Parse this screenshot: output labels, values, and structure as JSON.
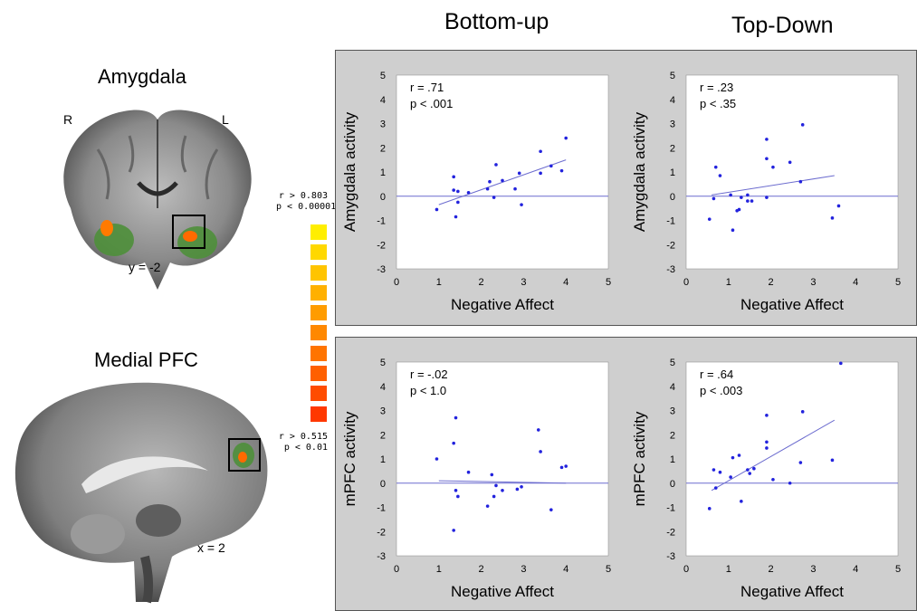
{
  "columns": {
    "left": "Bottom-up",
    "right": "Top-Down"
  },
  "amygdala": {
    "title": "Amygdala",
    "left_label": "R",
    "right_label": "L",
    "coord": "y = -2"
  },
  "mpfc": {
    "title": "Medial PFC",
    "coord": "x = 2"
  },
  "colorbar": {
    "top_r": "r > 0.803",
    "top_p": "p < 0.00001",
    "bottom_r": "r > 0.515",
    "bottom_p": "p < 0.01",
    "colors": [
      "#ffee00",
      "#ffd800",
      "#ffc400",
      "#ffb000",
      "#ff9c00",
      "#ff8800",
      "#ff7400",
      "#ff6000",
      "#ff4c00",
      "#ff3800"
    ]
  },
  "chart_data": [
    {
      "type": "scatter",
      "panel": "bottom-up-amygdala",
      "xlabel": "Negative Affect",
      "ylabel": "Amygdala activity",
      "xlim": [
        0,
        5
      ],
      "ylim": [
        -3,
        5
      ],
      "xticks": [
        "0",
        "1",
        "2",
        "3",
        "4",
        "5"
      ],
      "yticks": [
        "5",
        "4",
        "3",
        "2",
        "1",
        "0",
        "-1",
        "-2",
        "-3"
      ],
      "stat_r": "r = .71",
      "stat_p": "p < .001",
      "fit": [
        [
          1.0,
          -0.35
        ],
        [
          4.0,
          1.5
        ]
      ],
      "baseline": 0,
      "points": [
        [
          0.95,
          -0.55
        ],
        [
          1.35,
          0.8
        ],
        [
          1.35,
          0.25
        ],
        [
          1.4,
          -0.85
        ],
        [
          1.45,
          0.2
        ],
        [
          1.45,
          -0.25
        ],
        [
          1.7,
          0.15
        ],
        [
          2.15,
          0.3
        ],
        [
          2.2,
          0.6
        ],
        [
          2.3,
          -0.05
        ],
        [
          2.35,
          1.3
        ],
        [
          2.5,
          0.65
        ],
        [
          2.8,
          0.3
        ],
        [
          2.9,
          0.95
        ],
        [
          2.95,
          -0.35
        ],
        [
          3.4,
          0.95
        ],
        [
          3.4,
          1.85
        ],
        [
          3.65,
          1.25
        ],
        [
          3.9,
          1.05
        ],
        [
          4.0,
          2.4
        ]
      ]
    },
    {
      "type": "scatter",
      "panel": "top-down-amygdala",
      "xlabel": "Negative Affect",
      "ylabel": "Amygdala activity",
      "xlim": [
        0,
        5
      ],
      "ylim": [
        -3,
        5
      ],
      "xticks": [
        "0",
        "1",
        "2",
        "3",
        "4",
        "5"
      ],
      "yticks": [
        "5",
        "4",
        "3",
        "2",
        "1",
        "0",
        "-1",
        "-2",
        "-3"
      ],
      "stat_r": "r = .23",
      "stat_p": "p < .35",
      "fit": [
        [
          0.6,
          0.05
        ],
        [
          3.5,
          0.85
        ]
      ],
      "baseline": 0,
      "points": [
        [
          0.55,
          -0.95
        ],
        [
          0.65,
          -0.1
        ],
        [
          0.7,
          1.2
        ],
        [
          0.8,
          0.85
        ],
        [
          1.05,
          0.05
        ],
        [
          1.1,
          -1.4
        ],
        [
          1.2,
          -0.6
        ],
        [
          1.25,
          -0.55
        ],
        [
          1.3,
          -0.05
        ],
        [
          1.45,
          0.05
        ],
        [
          1.45,
          -0.2
        ],
        [
          1.55,
          -0.2
        ],
        [
          1.9,
          2.35
        ],
        [
          1.9,
          1.55
        ],
        [
          1.9,
          -0.05
        ],
        [
          2.05,
          1.2
        ],
        [
          2.45,
          1.4
        ],
        [
          2.7,
          0.6
        ],
        [
          2.75,
          2.95
        ],
        [
          3.45,
          -0.9
        ],
        [
          3.6,
          -0.4
        ]
      ]
    },
    {
      "type": "scatter",
      "panel": "bottom-up-mpfc",
      "xlabel": "Negative Affect",
      "ylabel": "mPFC activity",
      "xlim": [
        0,
        5
      ],
      "ylim": [
        -3,
        5
      ],
      "xticks": [
        "0",
        "1",
        "2",
        "3",
        "4",
        "5"
      ],
      "yticks": [
        "5",
        "4",
        "3",
        "2",
        "1",
        "0",
        "-1",
        "-2",
        "-3"
      ],
      "stat_r": "r = -.02",
      "stat_p": "p < 1.0",
      "fit": [
        [
          1.0,
          0.1
        ],
        [
          4.0,
          0.0
        ]
      ],
      "baseline": 0,
      "points": [
        [
          0.95,
          1.0
        ],
        [
          1.35,
          -1.95
        ],
        [
          1.35,
          1.65
        ],
        [
          1.4,
          2.7
        ],
        [
          1.4,
          -0.3
        ],
        [
          1.45,
          -0.55
        ],
        [
          1.7,
          0.45
        ],
        [
          2.15,
          -0.95
        ],
        [
          2.25,
          0.35
        ],
        [
          2.3,
          -0.55
        ],
        [
          2.35,
          -0.1
        ],
        [
          2.5,
          -0.3
        ],
        [
          2.85,
          -0.25
        ],
        [
          2.95,
          -0.15
        ],
        [
          3.35,
          2.2
        ],
        [
          3.4,
          1.3
        ],
        [
          3.65,
          -1.1
        ],
        [
          3.9,
          0.65
        ],
        [
          4.0,
          0.7
        ]
      ]
    },
    {
      "type": "scatter",
      "panel": "top-down-mpfc",
      "xlabel": "Negative Affect",
      "ylabel": "mPFC activity",
      "xlim": [
        0,
        5
      ],
      "ylim": [
        -3,
        5
      ],
      "xticks": [
        "0",
        "1",
        "2",
        "3",
        "4",
        "5"
      ],
      "yticks": [
        "5",
        "4",
        "3",
        "2",
        "1",
        "0",
        "-1",
        "-2",
        "-3"
      ],
      "stat_r": "r = .64",
      "stat_p": "p < .003",
      "fit": [
        [
          0.6,
          -0.3
        ],
        [
          3.5,
          2.6
        ]
      ],
      "baseline": 0,
      "points": [
        [
          0.55,
          -1.05
        ],
        [
          0.65,
          0.55
        ],
        [
          0.7,
          -0.2
        ],
        [
          0.8,
          0.45
        ],
        [
          1.05,
          0.25
        ],
        [
          1.1,
          1.05
        ],
        [
          1.25,
          1.15
        ],
        [
          1.3,
          -0.75
        ],
        [
          1.45,
          0.55
        ],
        [
          1.5,
          0.4
        ],
        [
          1.6,
          0.6
        ],
        [
          1.9,
          2.8
        ],
        [
          1.9,
          1.7
        ],
        [
          1.9,
          1.45
        ],
        [
          2.05,
          0.15
        ],
        [
          2.45,
          0.0
        ],
        [
          2.7,
          0.85
        ],
        [
          2.75,
          2.95
        ],
        [
          3.45,
          0.95
        ],
        [
          3.65,
          4.95
        ]
      ]
    }
  ]
}
